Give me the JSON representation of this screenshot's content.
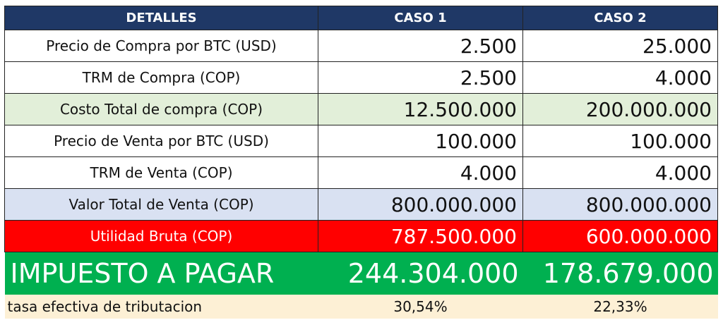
{
  "header": {
    "col1": "DETALLES",
    "col2": "CASO 1",
    "col3": "CASO 2"
  },
  "rows": [
    {
      "label": "Precio de Compra por BTC (USD)",
      "caso1": "2.500",
      "caso2": "25.000"
    },
    {
      "label": "TRM de Compra (COP)",
      "caso1": "2.500",
      "caso2": "4.000"
    },
    {
      "label": "Costo Total de compra (COP)",
      "caso1": "12.500.000",
      "caso2": "200.000.000"
    },
    {
      "label": "Precio de Venta por BTC (USD)",
      "caso1": "100.000",
      "caso2": "100.000"
    },
    {
      "label": "TRM de Venta (COP)",
      "caso1": "4.000",
      "caso2": "4.000"
    },
    {
      "label": "Valor Total de Venta (COP)",
      "caso1": "800.000.000",
      "caso2": "800.000.000"
    },
    {
      "label": "Utilidad Bruta (COP)",
      "caso1": "787.500.000",
      "caso2": "600.000.000"
    }
  ],
  "tax": {
    "label": "IMPUESTO A PAGAR",
    "caso1": "244.304.000",
    "caso2": "178.679.000"
  },
  "rate": {
    "label": "tasa efectiva de tributacion",
    "caso1": "30,54%",
    "caso2": "22,33%"
  },
  "colors": {
    "header_bg": "#1f3866",
    "green_light": "#e2efd9",
    "blue_light": "#d9e1f2",
    "red": "#ff0000",
    "green": "#00b050",
    "cream": "#fdf0d5"
  }
}
